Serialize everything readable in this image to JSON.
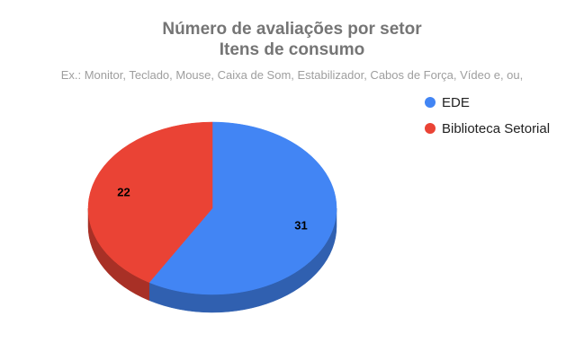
{
  "chart_data": {
    "type": "pie",
    "title": "Número de avaliações por setor",
    "title_line2": "Itens de consumo",
    "subtitle": "Ex.: Monitor, Teclado, Mouse, Caixa de Som, Estabilizador, Cabos de Força, Vídeo e, ou,",
    "legend_position": "right",
    "three_d": true,
    "slices": [
      {
        "label": "EDE",
        "value": 31,
        "color": "#4285f4"
      },
      {
        "label": "Biblioteca Setorial",
        "value": 22,
        "color": "#ea4335"
      }
    ]
  }
}
